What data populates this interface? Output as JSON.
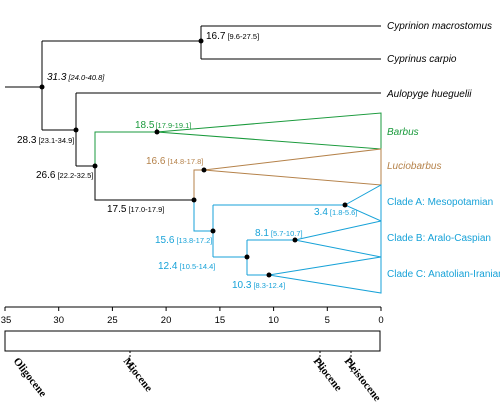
{
  "colors": {
    "black": "#000000",
    "green": "#1a9a3c",
    "brown": "#b5824a",
    "blue": "#17a2d8"
  },
  "tips": {
    "cyprinion": "Cyprinion macrostomus",
    "cyprinus": "Cyprinus carpio",
    "aulopyge": "Aulopyge hueguelii",
    "barbus": "Barbus",
    "luciobarbus": "Luciobarbus",
    "clade_a": "Clade A: Mesopotamian",
    "clade_b": "Clade B: Aralo-Caspian",
    "clade_c": "Clade C: Anatolian-Iranian"
  },
  "nodes": {
    "n31": {
      "age": "31.3",
      "ci": "[24.0-40.8]"
    },
    "n16_7": {
      "age": "16.7",
      "ci": "[9.6-27.5]"
    },
    "n28": {
      "age": "28.3",
      "ci": "[23.1-34.9]"
    },
    "n26": {
      "age": "26.6",
      "ci": "[22.2-32.5]"
    },
    "n18": {
      "age": "18.5",
      "ci": "[17.9-19.1]"
    },
    "n16_6": {
      "age": "16.6",
      "ci": "[14.8-17.8]"
    },
    "n17": {
      "age": "17.5",
      "ci": "[17.0-17.9]"
    },
    "n15": {
      "age": "15.6",
      "ci": "[13.8-17.2]"
    },
    "n12": {
      "age": "12.4",
      "ci": "[10.5-14.4]"
    },
    "n10": {
      "age": "10.3",
      "ci": "[8.3-12.4]"
    },
    "n8": {
      "age": "8.1",
      "ci": "[5.7-10.7]"
    },
    "n3": {
      "age": "3.4",
      "ci": "[1.8-5.6]"
    }
  },
  "axis": {
    "ticks": [
      "35",
      "30",
      "25",
      "20",
      "15",
      "10",
      "5",
      "0"
    ]
  },
  "epochs": [
    "Oligocene",
    "Miocene",
    "Pliocene",
    "Pleistocene"
  ]
}
